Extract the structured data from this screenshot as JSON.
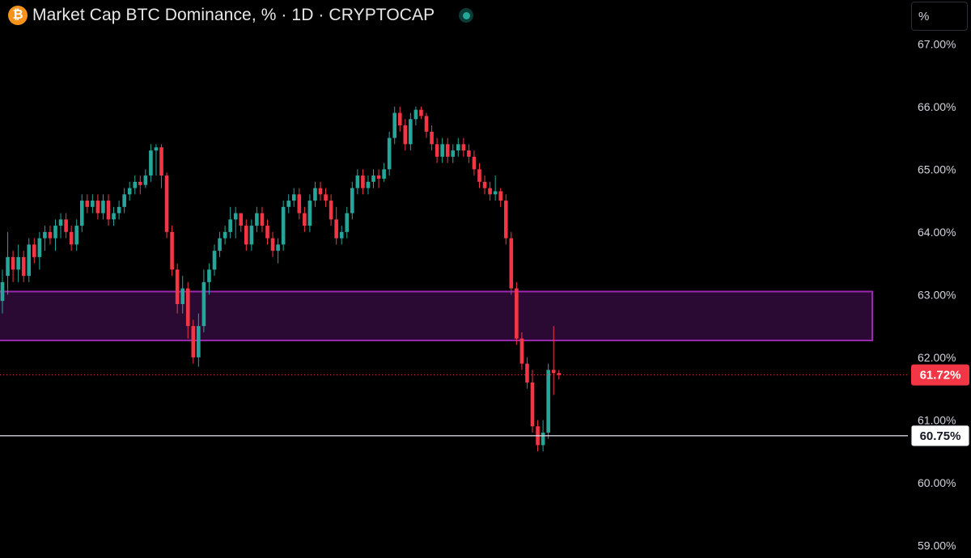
{
  "header": {
    "title": "Market Cap BTC Dominance, % · 1D · CRYPTOCAP",
    "symbol_icon": "bitcoin-icon",
    "status_icon": "live-status-icon"
  },
  "axis_mode": "%",
  "colors": {
    "up": "#26a69a",
    "down": "#f23645",
    "zone_border": "#9c27b0",
    "zone_fill": "#2a0a33",
    "background": "#000000"
  },
  "chart_data": {
    "type": "candlestick",
    "title": "Market Cap BTC Dominance, % · 1D · CRYPTOCAP",
    "y_ticks": [
      "59.00%",
      "60.00%",
      "61.00%",
      "62.00%",
      "63.00%",
      "64.00%",
      "65.00%",
      "66.00%",
      "67.00%"
    ],
    "y_tick_values": [
      59,
      60,
      61,
      62,
      63,
      64,
      65,
      66,
      67
    ],
    "ylim": [
      58.8,
      67.7
    ],
    "grid": false,
    "zone": {
      "low": 62.27,
      "high": 63.05,
      "label": ""
    },
    "current_price": {
      "value": 61.72,
      "label": "61.72%"
    },
    "level_line": {
      "value": 60.75,
      "label": "60.75%"
    },
    "candles": [
      [
        62.9,
        63.4,
        62.7,
        63.2
      ],
      [
        63.3,
        64.0,
        63.0,
        63.6
      ],
      [
        63.6,
        63.7,
        63.2,
        63.4
      ],
      [
        63.4,
        63.8,
        63.2,
        63.6
      ],
      [
        63.6,
        63.7,
        63.2,
        63.3
      ],
      [
        63.3,
        63.9,
        63.2,
        63.8
      ],
      [
        63.8,
        63.9,
        63.5,
        63.6
      ],
      [
        63.6,
        64.0,
        63.4,
        63.9
      ],
      [
        63.9,
        64.1,
        63.7,
        64.0
      ],
      [
        64.0,
        64.1,
        63.8,
        63.9
      ],
      [
        63.9,
        64.2,
        63.7,
        64.1
      ],
      [
        64.1,
        64.3,
        63.9,
        64.2
      ],
      [
        64.2,
        64.3,
        63.9,
        64.0
      ],
      [
        64.0,
        64.1,
        63.7,
        63.8
      ],
      [
        63.8,
        64.2,
        63.7,
        64.1
      ],
      [
        64.1,
        64.6,
        64.0,
        64.5
      ],
      [
        64.5,
        64.6,
        64.3,
        64.4
      ],
      [
        64.4,
        64.6,
        64.3,
        64.5
      ],
      [
        64.5,
        64.6,
        64.2,
        64.3
      ],
      [
        64.3,
        64.6,
        64.2,
        64.5
      ],
      [
        64.5,
        64.6,
        64.1,
        64.2
      ],
      [
        64.2,
        64.4,
        64.1,
        64.3
      ],
      [
        64.3,
        64.5,
        64.2,
        64.4
      ],
      [
        64.4,
        64.7,
        64.3,
        64.6
      ],
      [
        64.6,
        64.8,
        64.5,
        64.7
      ],
      [
        64.7,
        64.9,
        64.6,
        64.8
      ],
      [
        64.8,
        64.9,
        64.6,
        64.75
      ],
      [
        64.75,
        65.0,
        64.7,
        64.9
      ],
      [
        64.9,
        65.4,
        64.8,
        65.3
      ],
      [
        65.3,
        65.4,
        64.9,
        65.35
      ],
      [
        65.35,
        65.4,
        64.7,
        64.9
      ],
      [
        64.9,
        64.95,
        63.9,
        64.0
      ],
      [
        64.0,
        64.1,
        63.3,
        63.4
      ],
      [
        63.4,
        63.5,
        62.7,
        62.85
      ],
      [
        62.85,
        63.3,
        62.7,
        63.1
      ],
      [
        63.1,
        63.2,
        62.3,
        62.5
      ],
      [
        62.5,
        62.6,
        61.9,
        62.0
      ],
      [
        62.0,
        62.7,
        61.85,
        62.5
      ],
      [
        62.5,
        63.4,
        62.4,
        63.2
      ],
      [
        63.2,
        63.5,
        63.0,
        63.4
      ],
      [
        63.4,
        63.8,
        63.3,
        63.7
      ],
      [
        63.7,
        64.0,
        63.6,
        63.9
      ],
      [
        63.9,
        64.1,
        63.8,
        64.0
      ],
      [
        64.0,
        64.4,
        63.9,
        64.2
      ],
      [
        64.2,
        64.4,
        63.9,
        64.3
      ],
      [
        64.3,
        64.3,
        64.0,
        64.1
      ],
      [
        64.1,
        64.2,
        63.7,
        63.8
      ],
      [
        63.8,
        64.2,
        63.7,
        64.1
      ],
      [
        64.1,
        64.4,
        64.0,
        64.3
      ],
      [
        64.3,
        64.4,
        64.0,
        64.1
      ],
      [
        64.1,
        64.2,
        63.8,
        63.9
      ],
      [
        63.9,
        64.0,
        63.6,
        63.7
      ],
      [
        63.7,
        63.9,
        63.5,
        63.8
      ],
      [
        63.8,
        64.5,
        63.7,
        64.4
      ],
      [
        64.4,
        64.6,
        64.3,
        64.5
      ],
      [
        64.5,
        64.7,
        64.4,
        64.6
      ],
      [
        64.6,
        64.7,
        64.2,
        64.3
      ],
      [
        64.3,
        64.4,
        64.0,
        64.1
      ],
      [
        64.1,
        64.6,
        64.0,
        64.5
      ],
      [
        64.5,
        64.8,
        64.4,
        64.7
      ],
      [
        64.7,
        64.8,
        64.5,
        64.6
      ],
      [
        64.6,
        64.7,
        64.4,
        64.5
      ],
      [
        64.5,
        64.6,
        64.1,
        64.2
      ],
      [
        64.2,
        64.4,
        63.8,
        63.9
      ],
      [
        63.9,
        64.1,
        63.8,
        64.0
      ],
      [
        64.0,
        64.4,
        63.9,
        64.3
      ],
      [
        64.3,
        64.8,
        64.2,
        64.7
      ],
      [
        64.7,
        65.0,
        64.6,
        64.9
      ],
      [
        64.9,
        65.0,
        64.6,
        64.7
      ],
      [
        64.7,
        64.9,
        64.6,
        64.8
      ],
      [
        64.8,
        65.0,
        64.7,
        64.9
      ],
      [
        64.9,
        65.0,
        64.7,
        64.85
      ],
      [
        64.85,
        65.1,
        64.8,
        65.0
      ],
      [
        65.0,
        65.6,
        64.9,
        65.5
      ],
      [
        65.5,
        66.0,
        65.4,
        65.9
      ],
      [
        65.9,
        66.0,
        65.6,
        65.7
      ],
      [
        65.7,
        65.8,
        65.3,
        65.4
      ],
      [
        65.4,
        65.9,
        65.3,
        65.8
      ],
      [
        65.8,
        66.0,
        65.7,
        65.95
      ],
      [
        65.95,
        66.0,
        65.8,
        65.85
      ],
      [
        65.85,
        65.9,
        65.5,
        65.6
      ],
      [
        65.6,
        65.7,
        65.3,
        65.4
      ],
      [
        65.4,
        65.5,
        65.1,
        65.2
      ],
      [
        65.2,
        65.5,
        65.1,
        65.4
      ],
      [
        65.4,
        65.5,
        65.1,
        65.2
      ],
      [
        65.2,
        65.4,
        65.1,
        65.3
      ],
      [
        65.3,
        65.5,
        65.2,
        65.4
      ],
      [
        65.4,
        65.5,
        65.2,
        65.3
      ],
      [
        65.3,
        65.4,
        65.1,
        65.2
      ],
      [
        65.2,
        65.3,
        64.9,
        65.0
      ],
      [
        65.0,
        65.1,
        64.7,
        64.8
      ],
      [
        64.8,
        64.9,
        64.6,
        64.7
      ],
      [
        64.7,
        64.8,
        64.5,
        64.6
      ],
      [
        64.6,
        64.9,
        64.5,
        64.65
      ],
      [
        64.65,
        64.7,
        64.4,
        64.5
      ],
      [
        64.5,
        64.6,
        63.8,
        63.9
      ],
      [
        63.9,
        64.0,
        63.0,
        63.1
      ],
      [
        63.1,
        63.2,
        62.2,
        62.3
      ],
      [
        62.3,
        62.4,
        61.8,
        61.9
      ],
      [
        61.9,
        62.0,
        61.5,
        61.6
      ],
      [
        61.6,
        61.8,
        60.8,
        60.9
      ],
      [
        60.9,
        61.0,
        60.5,
        60.6
      ],
      [
        60.6,
        61.0,
        60.5,
        60.8
      ],
      [
        60.8,
        61.9,
        60.7,
        61.8
      ],
      [
        61.8,
        62.5,
        61.4,
        61.75
      ],
      [
        61.75,
        61.8,
        61.65,
        61.72
      ]
    ]
  }
}
